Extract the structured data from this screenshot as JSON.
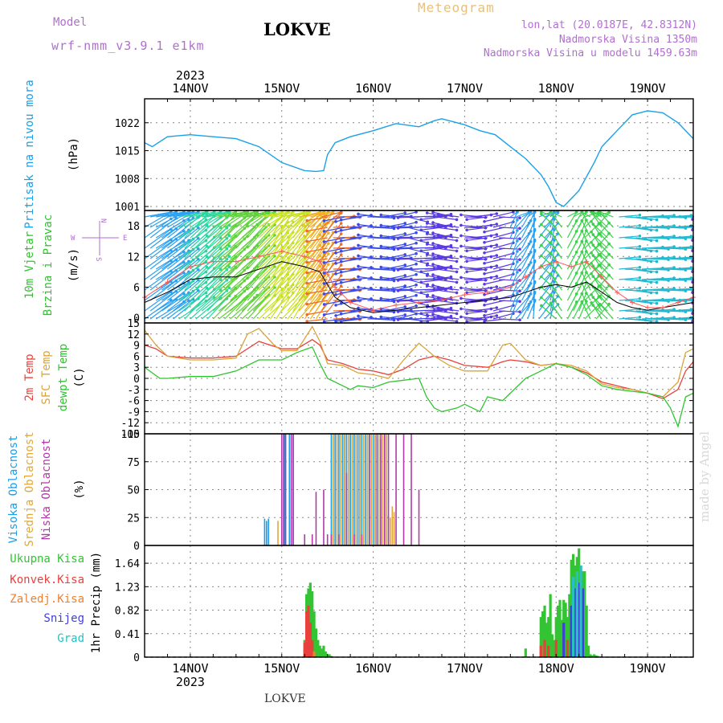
{
  "header": {
    "model_label": "Model",
    "model_name": "wrf-nmm_v3.9.1 e1km",
    "station": "LOKVE",
    "product": "Meteogram",
    "coords": "lon,lat (20.0187E, 42.8312N)",
    "elevation": "Nadmorska Visina 1350m",
    "elevation_model": "Nadmorska Visina u modelu 1459.63m"
  },
  "footer": {
    "station": "LOKVE",
    "watermark": "made by Angel"
  },
  "time_axis": {
    "year": "2023",
    "day_labels": [
      "14NOV",
      "15NOV",
      "16NOV",
      "17NOV",
      "18NOV",
      "19NOV"
    ],
    "hour_start": 0,
    "hour_end": 144,
    "day_ticks": [
      12,
      36,
      60,
      84,
      108,
      132
    ]
  },
  "colors": {
    "pressure": "#1aa0e8",
    "temp_2m": "#e8413c",
    "temp_sfc": "#d9a43a",
    "dewpoint": "#2fc42f",
    "high_cloud": "#1a9ee8",
    "mid_cloud": "#e0a83c",
    "low_cloud": "#b23aa8",
    "total_precip": "#33c433",
    "convective": "#e8413c",
    "freezing": "#f08030",
    "snow": "#4040d8",
    "hail": "#2ac0c0",
    "wind_speed": "#000000",
    "wind_gust": "#ff5a5a"
  },
  "chart_data": [
    {
      "type": "line",
      "panel": "pressure",
      "ylabel": "Pritisak na nivou mora",
      "unit": "(hPa)",
      "ylim": [
        1000,
        1028
      ],
      "yticks": [
        1001,
        1008,
        1015,
        1022
      ],
      "series": [
        {
          "name": "Pritisak na nivou mora",
          "x": [
            0,
            2,
            6,
            12,
            18,
            24,
            30,
            36,
            42,
            45,
            47,
            48,
            50,
            54,
            60,
            66,
            72,
            76,
            78,
            80,
            84,
            88,
            92,
            96,
            100,
            104,
            106,
            108,
            110,
            114,
            118,
            120,
            124,
            128,
            132,
            136,
            140,
            144
          ],
          "y": [
            1017,
            1016,
            1018.5,
            1019,
            1018.5,
            1018,
            1016,
            1012,
            1010,
            1009.8,
            1010,
            1014,
            1017,
            1018.5,
            1020,
            1021.8,
            1021,
            1022.5,
            1023,
            1022.5,
            1021.5,
            1020,
            1019,
            1016,
            1013,
            1009,
            1006,
            1002,
            1001,
            1005,
            1012,
            1016,
            1020,
            1024,
            1025,
            1024.5,
            1022,
            1018
          ]
        }
      ]
    },
    {
      "type": "line",
      "panel": "wind",
      "ylabel": "10m Vjetar Brzina i Pravac",
      "unit": "(m/s)",
      "ylim": [
        -1,
        21
      ],
      "yticks": [
        0,
        6,
        12,
        18
      ],
      "compass": {
        "north": "N",
        "south": "S",
        "west": "W",
        "east": "E"
      },
      "barb_hue_stops": [
        {
          "hour": 0,
          "color": "#2aa0f0"
        },
        {
          "hour": 8,
          "color": "#29d6a0"
        },
        {
          "hour": 18,
          "color": "#5fd23a"
        },
        {
          "hour": 30,
          "color": "#c8e21e"
        },
        {
          "hour": 40,
          "color": "#f0b020"
        },
        {
          "hour": 46,
          "color": "#f06a20"
        },
        {
          "hour": 52,
          "color": "#3a4ae8"
        },
        {
          "hour": 72,
          "color": "#5a3ae0"
        },
        {
          "hour": 96,
          "color": "#2aa0f0"
        },
        {
          "hour": 108,
          "color": "#3ad24a"
        },
        {
          "hour": 124,
          "color": "#22b8d0"
        },
        {
          "hour": 144,
          "color": "#7a3ae8"
        }
      ],
      "series": [
        {
          "name": "speed",
          "x": [
            0,
            6,
            12,
            18,
            24,
            30,
            36,
            42,
            46,
            50,
            54,
            60,
            66,
            72,
            78,
            84,
            90,
            96,
            100,
            104,
            108,
            112,
            116,
            120,
            124,
            128,
            132,
            136,
            140,
            144
          ],
          "y": [
            3,
            5,
            7.5,
            8,
            8,
            9.5,
            11,
            10,
            9,
            4,
            2,
            1,
            1.5,
            2,
            2.5,
            3,
            3.5,
            4,
            5,
            6,
            6.5,
            6,
            7,
            5,
            3,
            2,
            1.5,
            2,
            2.5,
            3
          ]
        },
        {
          "name": "gust",
          "x": [
            0,
            6,
            12,
            18,
            24,
            30,
            36,
            42,
            46,
            50,
            54,
            60,
            66,
            72,
            78,
            84,
            90,
            96,
            100,
            104,
            108,
            112,
            116,
            120,
            124,
            128,
            132,
            136,
            140,
            144
          ],
          "y": [
            4,
            7,
            10,
            11,
            11,
            12,
            13,
            12,
            11,
            6,
            3,
            1.5,
            2.5,
            3,
            3.5,
            4.5,
            5,
            6,
            8,
            10,
            11,
            10,
            11,
            8,
            5,
            3,
            2,
            2,
            3,
            4
          ]
        }
      ]
    },
    {
      "type": "line",
      "panel": "temperature",
      "ylabel": [
        "2m Temp",
        "SFC Temp",
        "dewpt Temp"
      ],
      "unit": "(C)",
      "ylim": [
        -15,
        15
      ],
      "yticks": [
        -15,
        -12,
        -9,
        -6,
        -3,
        0,
        3,
        6,
        9,
        12,
        15
      ],
      "series": [
        {
          "name": "2m Temp",
          "x": [
            0,
            3,
            6,
            12,
            18,
            24,
            30,
            36,
            40,
            44,
            46,
            48,
            52,
            56,
            60,
            64,
            68,
            72,
            76,
            80,
            84,
            90,
            94,
            96,
            100,
            104,
            108,
            112,
            116,
            120,
            124,
            128,
            132,
            136,
            140,
            142,
            144
          ],
          "y": [
            9,
            8,
            6,
            5.5,
            5.5,
            6,
            10,
            8,
            8,
            10.5,
            9,
            5,
            4,
            2.5,
            2,
            1,
            2.5,
            5,
            6,
            5,
            3.5,
            3,
            4.5,
            5,
            4.5,
            3.5,
            4,
            3,
            1.5,
            -1,
            -2,
            -3,
            -4,
            -5.5,
            -3,
            2,
            4.5
          ]
        },
        {
          "name": "SFC Temp",
          "x": [
            0,
            3,
            6,
            12,
            18,
            24,
            27,
            30,
            34,
            36,
            40,
            44,
            46,
            48,
            52,
            56,
            60,
            64,
            68,
            72,
            76,
            80,
            84,
            90,
            94,
            96,
            100,
            104,
            108,
            112,
            116,
            120,
            124,
            128,
            132,
            136,
            140,
            142,
            144
          ],
          "y": [
            13,
            9,
            6,
            5,
            5,
            5.5,
            12,
            13.5,
            9,
            7.5,
            7.5,
            14,
            10,
            4,
            3.5,
            1.5,
            1,
            0,
            5,
            9.5,
            6,
            3.5,
            2,
            2,
            9,
            9.5,
            5,
            3.5,
            4,
            3.5,
            2,
            -1.5,
            -2.5,
            -3,
            -4,
            -5,
            -1,
            7,
            8
          ]
        },
        {
          "name": "dewpt Temp",
          "x": [
            0,
            2,
            4,
            6,
            12,
            18,
            24,
            30,
            36,
            40,
            44,
            46,
            48,
            52,
            54,
            56,
            60,
            64,
            68,
            72,
            74,
            76,
            78,
            82,
            84,
            88,
            90,
            94,
            96,
            100,
            104,
            108,
            112,
            116,
            120,
            124,
            128,
            132,
            136,
            138,
            140,
            142,
            144
          ],
          "y": [
            3,
            1.5,
            0,
            0,
            0.5,
            0.5,
            2,
            5,
            5,
            7,
            8.5,
            4,
            0,
            -2,
            -3,
            -2,
            -2.5,
            -1,
            -0.5,
            0,
            -5,
            -8,
            -9,
            -8,
            -7,
            -9,
            -5,
            -6,
            -4,
            0,
            2,
            4,
            3,
            1,
            -2,
            -3,
            -3.5,
            -4,
            -5,
            -8,
            -13,
            -5,
            -4
          ]
        }
      ]
    },
    {
      "type": "bar",
      "panel": "clouds",
      "ylabel": [
        "Visoka Oblacnost",
        "Srednja Oblacnost",
        "Niska Oblacnost"
      ],
      "unit": "(%)",
      "ylim": [
        0,
        100
      ],
      "yticks": [
        0,
        25,
        50,
        75,
        100
      ],
      "series": [
        {
          "name": "Visoka Oblacnost",
          "x": [
            31.5,
            32,
            32.5,
            36.5,
            36.7,
            37,
            38,
            38.5,
            39,
            49,
            49.5,
            50,
            50.5,
            51,
            51.5,
            52,
            52.5,
            53,
            53.5,
            54,
            54.5,
            55,
            55.5,
            56,
            56.5,
            57,
            57.5,
            58,
            58.5,
            59,
            59.5,
            60,
            60.5,
            61,
            61.5,
            62
          ],
          "y": [
            24,
            22,
            24,
            100,
            100,
            100,
            100,
            100,
            100,
            100,
            100,
            100,
            100,
            100,
            100,
            100,
            100,
            100,
            100,
            100,
            100,
            100,
            100,
            100,
            100,
            100,
            100,
            100,
            100,
            100,
            100,
            100,
            100,
            100,
            95,
            95
          ]
        },
        {
          "name": "Srednja Oblacnost",
          "x": [
            35,
            36,
            49.5,
            50.5,
            51.5,
            52.5,
            53.5,
            54.5,
            55.5,
            56.5,
            57.5,
            58.5,
            59.5,
            60.5,
            61.5,
            62.5,
            63,
            63.5,
            64,
            64.5,
            65,
            65.5
          ],
          "y": [
            22,
            60,
            100,
            100,
            100,
            100,
            100,
            100,
            100,
            100,
            100,
            100,
            100,
            100,
            100,
            100,
            100,
            100,
            27,
            25,
            35,
            30
          ]
        },
        {
          "name": "Niska Oblacnost",
          "x": [
            36,
            36.5,
            37,
            38.5,
            39,
            42,
            44,
            45,
            47,
            48,
            49,
            51,
            53,
            55,
            57,
            59,
            61,
            62,
            63,
            64,
            66,
            68,
            70,
            72
          ],
          "y": [
            100,
            100,
            100,
            100,
            100,
            10,
            10,
            48,
            50,
            10,
            10,
            10,
            65,
            10,
            10,
            100,
            100,
            100,
            100,
            100,
            100,
            100,
            100,
            50
          ]
        }
      ]
    },
    {
      "type": "bar",
      "panel": "precipitation",
      "ylabel": "1hr Precip",
      "unit": "(mm)",
      "ylim": [
        0,
        1.95
      ],
      "yticks": [
        0,
        0.41,
        0.82,
        1.23,
        1.64
      ],
      "legend": [
        "Ukupna Kisa",
        "Konvek.Kisa",
        "Zaledj.Kisa",
        "Snijeg",
        "Grad"
      ],
      "series": [
        {
          "name": "Ukupna Kisa",
          "x": [
            42,
            42.5,
            43,
            43.5,
            44,
            44.5,
            45,
            45.5,
            46,
            46.5,
            47,
            47.5,
            48,
            48.5,
            49,
            100,
            104,
            104.5,
            105,
            105.5,
            106,
            106.5,
            107,
            107.5,
            108,
            108.5,
            109,
            109.5,
            110,
            110.5,
            111,
            111.5,
            112,
            112.5,
            113,
            113.5,
            114,
            114.5,
            115,
            115.5,
            116,
            116.5,
            117,
            117.5,
            118,
            118.5,
            119
          ],
          "y": [
            0.3,
            1.1,
            1.2,
            1.3,
            1.15,
            0.8,
            0.5,
            0.3,
            0.2,
            0.15,
            0.2,
            0.1,
            0.05,
            0.05,
            0.02,
            0.15,
            0.7,
            0.8,
            0.9,
            0.6,
            0.7,
            1.1,
            0.4,
            0.3,
            0.7,
            0.9,
            1.0,
            0.65,
            1.0,
            0.95,
            0.7,
            1.1,
            1.7,
            1.8,
            1.6,
            1.75,
            1.9,
            1.6,
            1.5,
            1.5,
            0.9,
            0.2,
            0.05,
            0.03,
            0.05,
            0.03,
            0.02
          ]
        },
        {
          "name": "Konvek.Kisa",
          "x": [
            42,
            42.5,
            43,
            43.5,
            44,
            104,
            105,
            106,
            108,
            111,
            112,
            114
          ],
          "y": [
            0.25,
            0.8,
            0.9,
            0.6,
            0.3,
            0.2,
            0.3,
            0.2,
            0.3,
            0.3,
            0.5,
            0.4
          ]
        },
        {
          "name": "Zaledj.Kisa",
          "x": [
            44.5
          ],
          "y": [
            0.1
          ]
        },
        {
          "name": "Snijeg",
          "x": [
            110,
            112,
            113,
            114,
            115
          ],
          "y": [
            0.6,
            0.9,
            1.2,
            1.3,
            1.2
          ]
        },
        {
          "name": "Grad",
          "x": [
            112.5,
            113.5,
            114.5
          ],
          "y": [
            1.4,
            1.5,
            1.6
          ]
        }
      ]
    }
  ],
  "panel_labels": {
    "pressure": {
      "title": "Pritisak na nivou mora",
      "unit": "(hPa)"
    },
    "wind": {
      "title": [
        "10m Vjetar",
        "Brzina i Pravac"
      ],
      "unit": "(m/s)"
    },
    "temperature": {
      "titles": [
        "2m Temp",
        "SFC Temp",
        "dewpt Temp"
      ],
      "unit": "(C)"
    },
    "clouds": {
      "titles": [
        "Visoka Oblacnost",
        "Srednja Oblacnost",
        "Niska Oblacnost"
      ],
      "unit": "(%)"
    },
    "precipitation": {
      "legend": [
        "Ukupna Kisa",
        "Konvek.Kisa",
        "Zaledj.Kisa",
        "Snijeg",
        "Grad"
      ],
      "title": "1hr Precip",
      "unit": "(mm)"
    }
  }
}
